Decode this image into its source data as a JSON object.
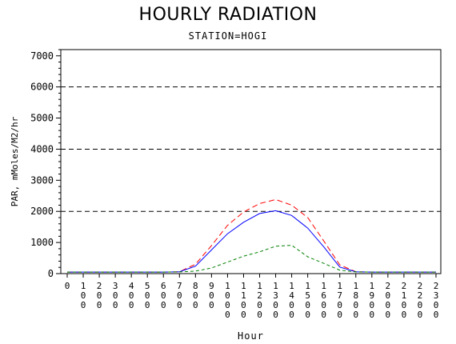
{
  "chart_data": {
    "type": "line",
    "title": "HOURLY RADIATION",
    "subtitle": "STATION=HOGI",
    "xlabel": "Hour",
    "ylabel": "PAR, mMoles/M2/hr",
    "ylim": [
      0,
      7200
    ],
    "xlim": [
      0,
      2300
    ],
    "yticks": [
      0,
      1000,
      2000,
      3000,
      4000,
      5000,
      6000,
      7000
    ],
    "ytick_labels": [
      "0",
      "1000",
      "2000",
      "3000",
      "4000",
      "5000",
      "6000",
      "7000"
    ],
    "xticks": [
      0,
      100,
      200,
      300,
      400,
      500,
      600,
      700,
      800,
      900,
      1000,
      1100,
      1200,
      1300,
      1400,
      1500,
      1600,
      1700,
      1800,
      1900,
      2000,
      2100,
      2200,
      2300
    ],
    "xtick_labels": [
      "0",
      "100",
      "200",
      "300",
      "400",
      "500",
      "600",
      "700",
      "800",
      "900",
      "1000",
      "1100",
      "1200",
      "1300",
      "1400",
      "1500",
      "1600",
      "1700",
      "1800",
      "1900",
      "2000",
      "2100",
      "2200",
      "2300"
    ],
    "reference_lines": [
      2000,
      4000,
      6000
    ],
    "grid": false,
    "x": [
      0,
      100,
      200,
      300,
      400,
      500,
      600,
      700,
      800,
      900,
      1000,
      1100,
      1200,
      1300,
      1400,
      1500,
      1600,
      1700,
      1800,
      1900,
      2000,
      2100,
      2200,
      2300
    ],
    "series": [
      {
        "color": "#ff0000",
        "dash": "7,4",
        "values": [
          50,
          50,
          50,
          50,
          50,
          50,
          50,
          60,
          300,
          900,
          1550,
          1980,
          2250,
          2380,
          2200,
          1800,
          1050,
          280,
          60,
          50,
          50,
          50,
          50,
          50
        ]
      },
      {
        "color": "#0000ff",
        "dash": "",
        "values": [
          50,
          50,
          50,
          50,
          50,
          50,
          50,
          60,
          240,
          760,
          1280,
          1650,
          1930,
          2020,
          1870,
          1460,
          860,
          210,
          60,
          50,
          50,
          50,
          50,
          50
        ]
      },
      {
        "color": "#008000",
        "dash": "4,3",
        "values": [
          50,
          50,
          50,
          50,
          50,
          50,
          50,
          55,
          80,
          180,
          370,
          560,
          700,
          880,
          910,
          540,
          330,
          110,
          55,
          50,
          50,
          50,
          50,
          50
        ]
      }
    ]
  }
}
